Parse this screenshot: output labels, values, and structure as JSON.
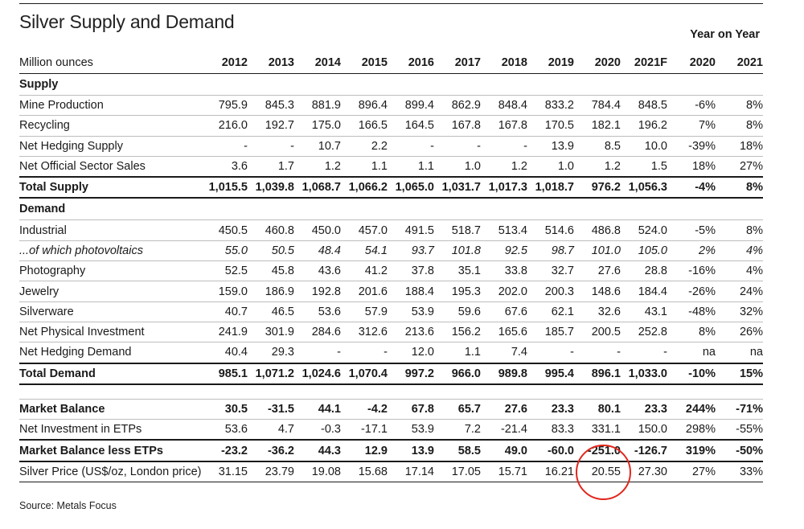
{
  "title": "Silver Supply and Demand",
  "year_on_year_label": "Year on Year",
  "header": {
    "unit": "Million ounces",
    "columns": [
      "2012",
      "2013",
      "2014",
      "2015",
      "2016",
      "2017",
      "2018",
      "2019",
      "2020",
      "2021F",
      "2020",
      "2021"
    ]
  },
  "supply_heading": "Supply",
  "supply_rows": [
    {
      "label": "Mine Production",
      "values": [
        "795.9",
        "845.3",
        "881.9",
        "896.4",
        "899.4",
        "862.9",
        "848.4",
        "833.2",
        "784.4",
        "848.5",
        "-6%",
        "8%"
      ]
    },
    {
      "label": "Recycling",
      "values": [
        "216.0",
        "192.7",
        "175.0",
        "166.5",
        "164.5",
        "167.8",
        "167.8",
        "170.5",
        "182.1",
        "196.2",
        "7%",
        "8%"
      ]
    },
    {
      "label": "Net Hedging Supply",
      "values": [
        "-",
        "-",
        "10.7",
        "2.2",
        "-",
        "-",
        "-",
        "13.9",
        "8.5",
        "10.0",
        "-39%",
        "18%"
      ]
    },
    {
      "label": "Net Official Sector Sales",
      "values": [
        "3.6",
        "1.7",
        "1.2",
        "1.1",
        "1.1",
        "1.0",
        "1.2",
        "1.0",
        "1.2",
        "1.5",
        "18%",
        "27%"
      ]
    }
  ],
  "total_supply": {
    "label": "Total Supply",
    "values": [
      "1,015.5",
      "1,039.8",
      "1,068.7",
      "1,066.2",
      "1,065.0",
      "1,031.7",
      "1,017.3",
      "1,018.7",
      "976.2",
      "1,056.3",
      "-4%",
      "8%"
    ]
  },
  "demand_heading": "Demand",
  "demand_rows": [
    {
      "label": "Industrial",
      "values": [
        "450.5",
        "460.8",
        "450.0",
        "457.0",
        "491.5",
        "518.7",
        "513.4",
        "514.6",
        "486.8",
        "524.0",
        "-5%",
        "8%"
      ]
    },
    {
      "label": "...of which photovoltaics",
      "values": [
        "55.0",
        "50.5",
        "48.4",
        "54.1",
        "93.7",
        "101.8",
        "92.5",
        "98.7",
        "101.0",
        "105.0",
        "2%",
        "4%"
      ]
    },
    {
      "label": "Photography",
      "values": [
        "52.5",
        "45.8",
        "43.6",
        "41.2",
        "37.8",
        "35.1",
        "33.8",
        "32.7",
        "27.6",
        "28.8",
        "-16%",
        "4%"
      ]
    },
    {
      "label": "Jewelry",
      "values": [
        "159.0",
        "186.9",
        "192.8",
        "201.6",
        "188.4",
        "195.3",
        "202.0",
        "200.3",
        "148.6",
        "184.4",
        "-26%",
        "24%"
      ]
    },
    {
      "label": "Silverware",
      "values": [
        "40.7",
        "46.5",
        "53.6",
        "57.9",
        "53.9",
        "59.6",
        "67.6",
        "62.1",
        "32.6",
        "43.1",
        "-48%",
        "32%"
      ]
    },
    {
      "label": "Net Physical Investment",
      "values": [
        "241.9",
        "301.9",
        "284.6",
        "312.6",
        "213.6",
        "156.2",
        "165.6",
        "185.7",
        "200.5",
        "252.8",
        "8%",
        "26%"
      ]
    },
    {
      "label": "Net Hedging Demand",
      "values": [
        "40.4",
        "29.3",
        "-",
        "-",
        "12.0",
        "1.1",
        "7.4",
        "-",
        "-",
        "-",
        "na",
        "na"
      ]
    }
  ],
  "total_demand": {
    "label": "Total Demand",
    "values": [
      "985.1",
      "1,071.2",
      "1,024.6",
      "1,070.4",
      "997.2",
      "966.0",
      "989.8",
      "995.4",
      "896.1",
      "1,033.0",
      "-10%",
      "15%"
    ]
  },
  "market_balance": {
    "label": "Market Balance",
    "values": [
      "30.5",
      "-31.5",
      "44.1",
      "-4.2",
      "67.8",
      "65.7",
      "27.6",
      "23.3",
      "80.1",
      "23.3",
      "244%",
      "-71%"
    ]
  },
  "net_investment_etps": {
    "label": "Net Investment in ETPs",
    "values": [
      "53.6",
      "4.7",
      "-0.3",
      "-17.1",
      "53.9",
      "7.2",
      "-21.4",
      "83.3",
      "331.1",
      "150.0",
      "298%",
      "-55%"
    ]
  },
  "market_balance_less_etps": {
    "label": "Market Balance less ETPs",
    "values": [
      "-23.2",
      "-36.2",
      "44.3",
      "12.9",
      "13.9",
      "58.5",
      "49.0",
      "-60.0",
      "-251.0",
      "-126.7",
      "319%",
      "-50%"
    ]
  },
  "silver_price": {
    "label": "Silver Price (US$/oz, London price)",
    "values": [
      "31.15",
      "23.79",
      "19.08",
      "15.68",
      "17.14",
      "17.05",
      "15.71",
      "16.21",
      "20.55",
      "27.30",
      "27%",
      "33%"
    ]
  },
  "source": "Source: Metals Focus",
  "colors": {
    "annotation_circle": "#e2261c",
    "rule": "#1a1a1a",
    "light_rule": "#bdbdbd"
  }
}
